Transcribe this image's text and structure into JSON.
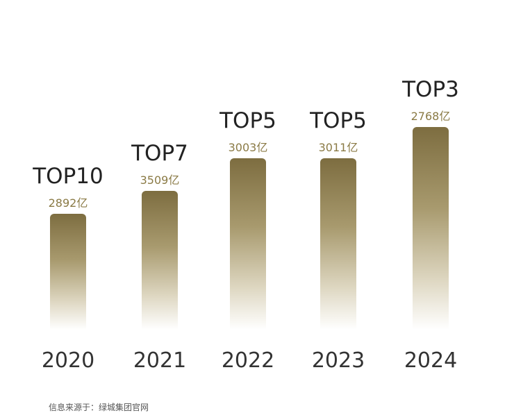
{
  "items": [
    {
      "rank": "TOP10",
      "value": "2892亿",
      "year": "2020"
    },
    {
      "rank": "TOP7",
      "value": "3509亿",
      "year": "2021"
    },
    {
      "rank": "TOP5",
      "value": "3003亿",
      "year": "2022"
    },
    {
      "rank": "TOP5",
      "value": "3011亿",
      "year": "2023"
    },
    {
      "rank": "TOP3",
      "value": "2768亿",
      "year": "2024"
    }
  ],
  "footer": {
    "source": "信息来源于：绿城集团官网"
  }
}
